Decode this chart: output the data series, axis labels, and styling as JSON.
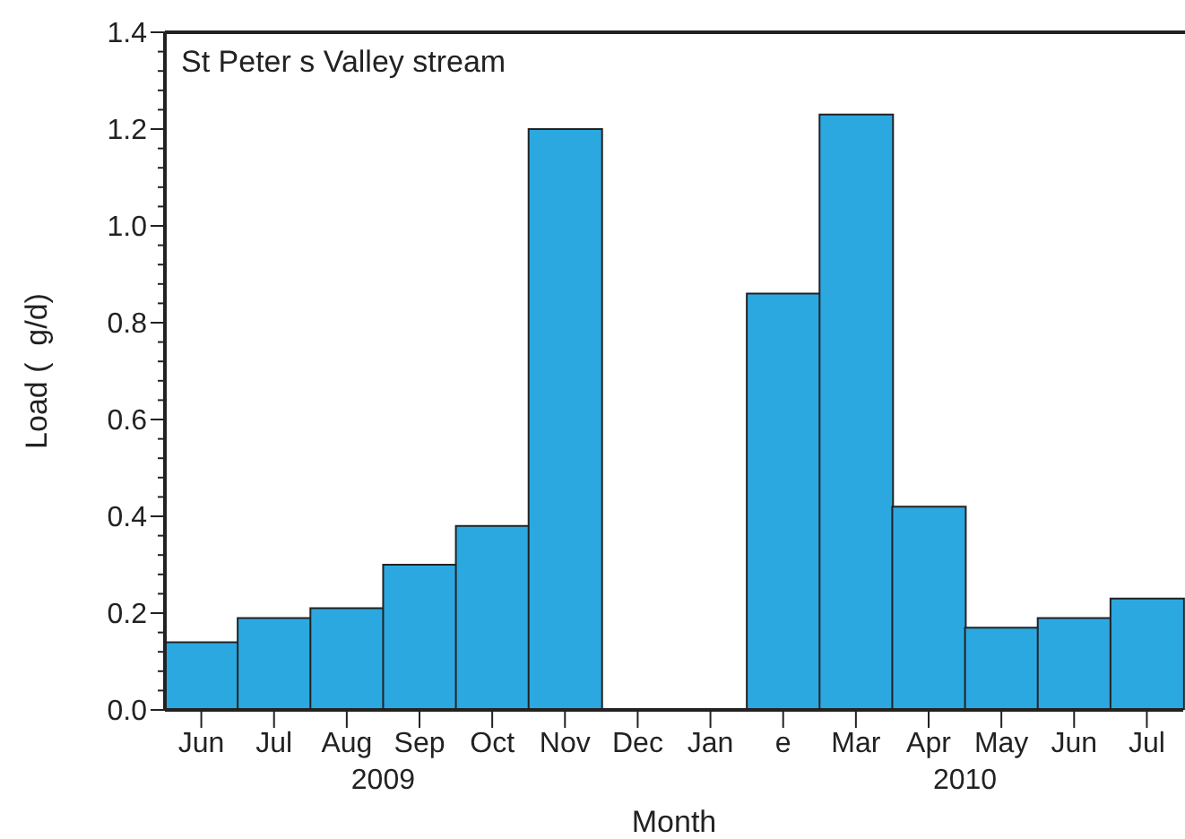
{
  "chart_data": {
    "type": "bar",
    "title": "St Peter s Valley stream",
    "xlabel": "Month",
    "ylabel": "Load (  g/d)",
    "categories": [
      "Jun",
      "Jul",
      "Aug",
      "Sep",
      "Oct",
      "Nov",
      "Dec",
      "Jan",
      "e",
      "Mar",
      "Apr",
      "May",
      "Jun",
      "Jul"
    ],
    "values": [
      0.14,
      0.19,
      0.21,
      0.3,
      0.38,
      1.2,
      0,
      0,
      0.86,
      1.23,
      0.42,
      0.17,
      0.19,
      0.23
    ],
    "color": "#2ca8e0",
    "ylim": [
      0,
      1.4
    ],
    "yticks": [
      {
        "value": 0,
        "label": "0.0"
      },
      {
        "value": 0.2,
        "label": "0.2"
      },
      {
        "value": 0.4,
        "label": "0.4"
      },
      {
        "value": 0.6,
        "label": "0.6"
      },
      {
        "value": 0.8,
        "label": "0.8"
      },
      {
        "value": 1,
        "label": "1.0"
      },
      {
        "value": 1.2,
        "label": "1.2"
      },
      {
        "value": 1.4,
        "label": "1.4"
      }
    ],
    "annotations": [
      "2009",
      "2010"
    ]
  }
}
